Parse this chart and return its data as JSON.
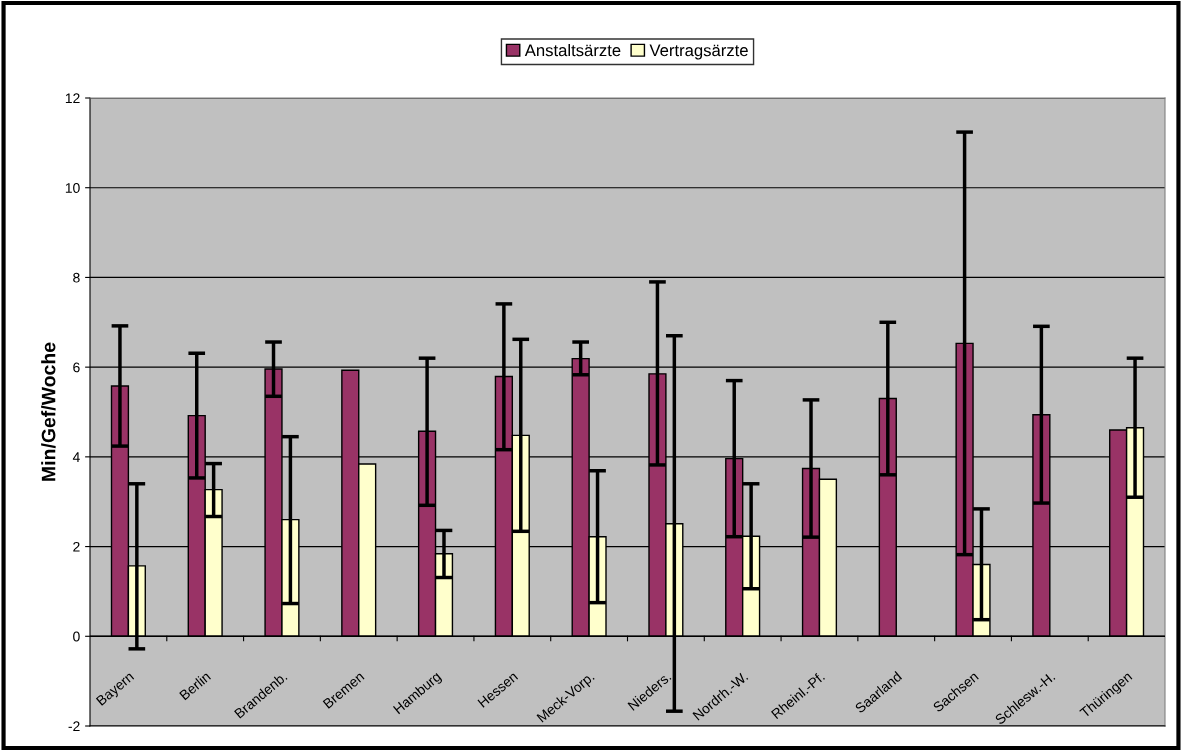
{
  "chart_data": {
    "type": "bar",
    "ylabel": "Min/Gef/Woche",
    "categories": [
      "Bayern",
      "Berlin",
      "Brandenb.",
      "Bremen",
      "Hamburg",
      "Hessen",
      "Meck-Vorp.",
      "Nieders.",
      "Nordrh.-W.",
      "Rheinl.-Pf.",
      "Saarland",
      "Sachsen",
      "Schlesw.-H.",
      "Thüringen"
    ],
    "series": [
      {
        "name": "Anstaltsärzte",
        "color": "#993366",
        "values": [
          5.58,
          4.92,
          5.96,
          5.93,
          4.57,
          5.79,
          6.19,
          5.85,
          3.96,
          3.74,
          5.3,
          6.53,
          4.94,
          4.6
        ],
        "errors": [
          [
            4.24,
            6.92
          ],
          [
            3.53,
            6.31
          ],
          [
            5.35,
            6.56
          ],
          null,
          [
            2.92,
            6.2
          ],
          [
            4.16,
            7.41
          ],
          [
            5.83,
            6.56
          ],
          [
            3.82,
            7.9
          ],
          [
            2.22,
            5.7
          ],
          [
            2.21,
            5.27
          ],
          [
            3.6,
            7.0
          ],
          [
            1.82,
            11.24
          ],
          [
            2.97,
            6.91
          ],
          null
        ]
      },
      {
        "name": "Vertragsärzte",
        "color": "#ffffcc",
        "values": [
          1.57,
          3.27,
          2.6,
          3.84,
          1.84,
          4.48,
          2.22,
          2.51,
          2.23,
          3.5,
          null,
          1.6,
          null,
          4.65
        ],
        "errors": [
          [
            -0.28,
            3.4
          ],
          [
            2.67,
            3.85
          ],
          [
            0.73,
            4.45
          ],
          null,
          [
            1.31,
            2.36
          ],
          [
            2.34,
            6.62
          ],
          [
            0.75,
            3.69
          ],
          [
            -1.67,
            6.7
          ],
          [
            1.06,
            3.4
          ],
          null,
          null,
          [
            0.37,
            2.84
          ],
          null,
          [
            3.1,
            6.2
          ]
        ]
      }
    ],
    "ylim": [
      -2,
      12
    ],
    "yticks": [
      -2,
      0,
      2,
      4,
      6,
      8,
      10,
      12
    ],
    "grid": "y",
    "legend": "top"
  }
}
